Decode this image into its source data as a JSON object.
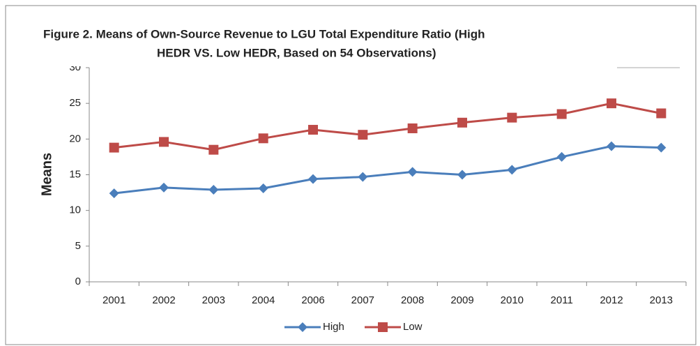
{
  "chart_data": {
    "type": "line",
    "title": [
      "Figure 2. Means of Own-Source Revenue to LGU Total Expenditure Ratio (High",
      "HEDR VS. Low HEDR, Based on 54 Observations)"
    ],
    "ylabel": "Means",
    "categories": [
      "2001",
      "2002",
      "2003",
      "2004",
      "2006",
      "2007",
      "2008",
      "2009",
      "2010",
      "2011",
      "2012",
      "2013"
    ],
    "series": [
      {
        "name": "High",
        "color": "#4a7ebb",
        "marker": "diamond",
        "values": [
          12.4,
          13.2,
          12.9,
          13.1,
          14.4,
          14.7,
          15.4,
          15.0,
          15.7,
          17.5,
          19.0,
          18.8
        ]
      },
      {
        "name": "Low",
        "color": "#be4b48",
        "marker": "square",
        "values": [
          18.8,
          19.6,
          18.5,
          20.1,
          21.3,
          20.6,
          21.5,
          22.3,
          23.0,
          23.5,
          25.0,
          23.6
        ]
      }
    ],
    "ylim": [
      0,
      30
    ],
    "yticks": [
      0,
      5,
      10,
      15,
      20,
      25,
      30
    ],
    "grid": false,
    "legend": "bottom"
  }
}
